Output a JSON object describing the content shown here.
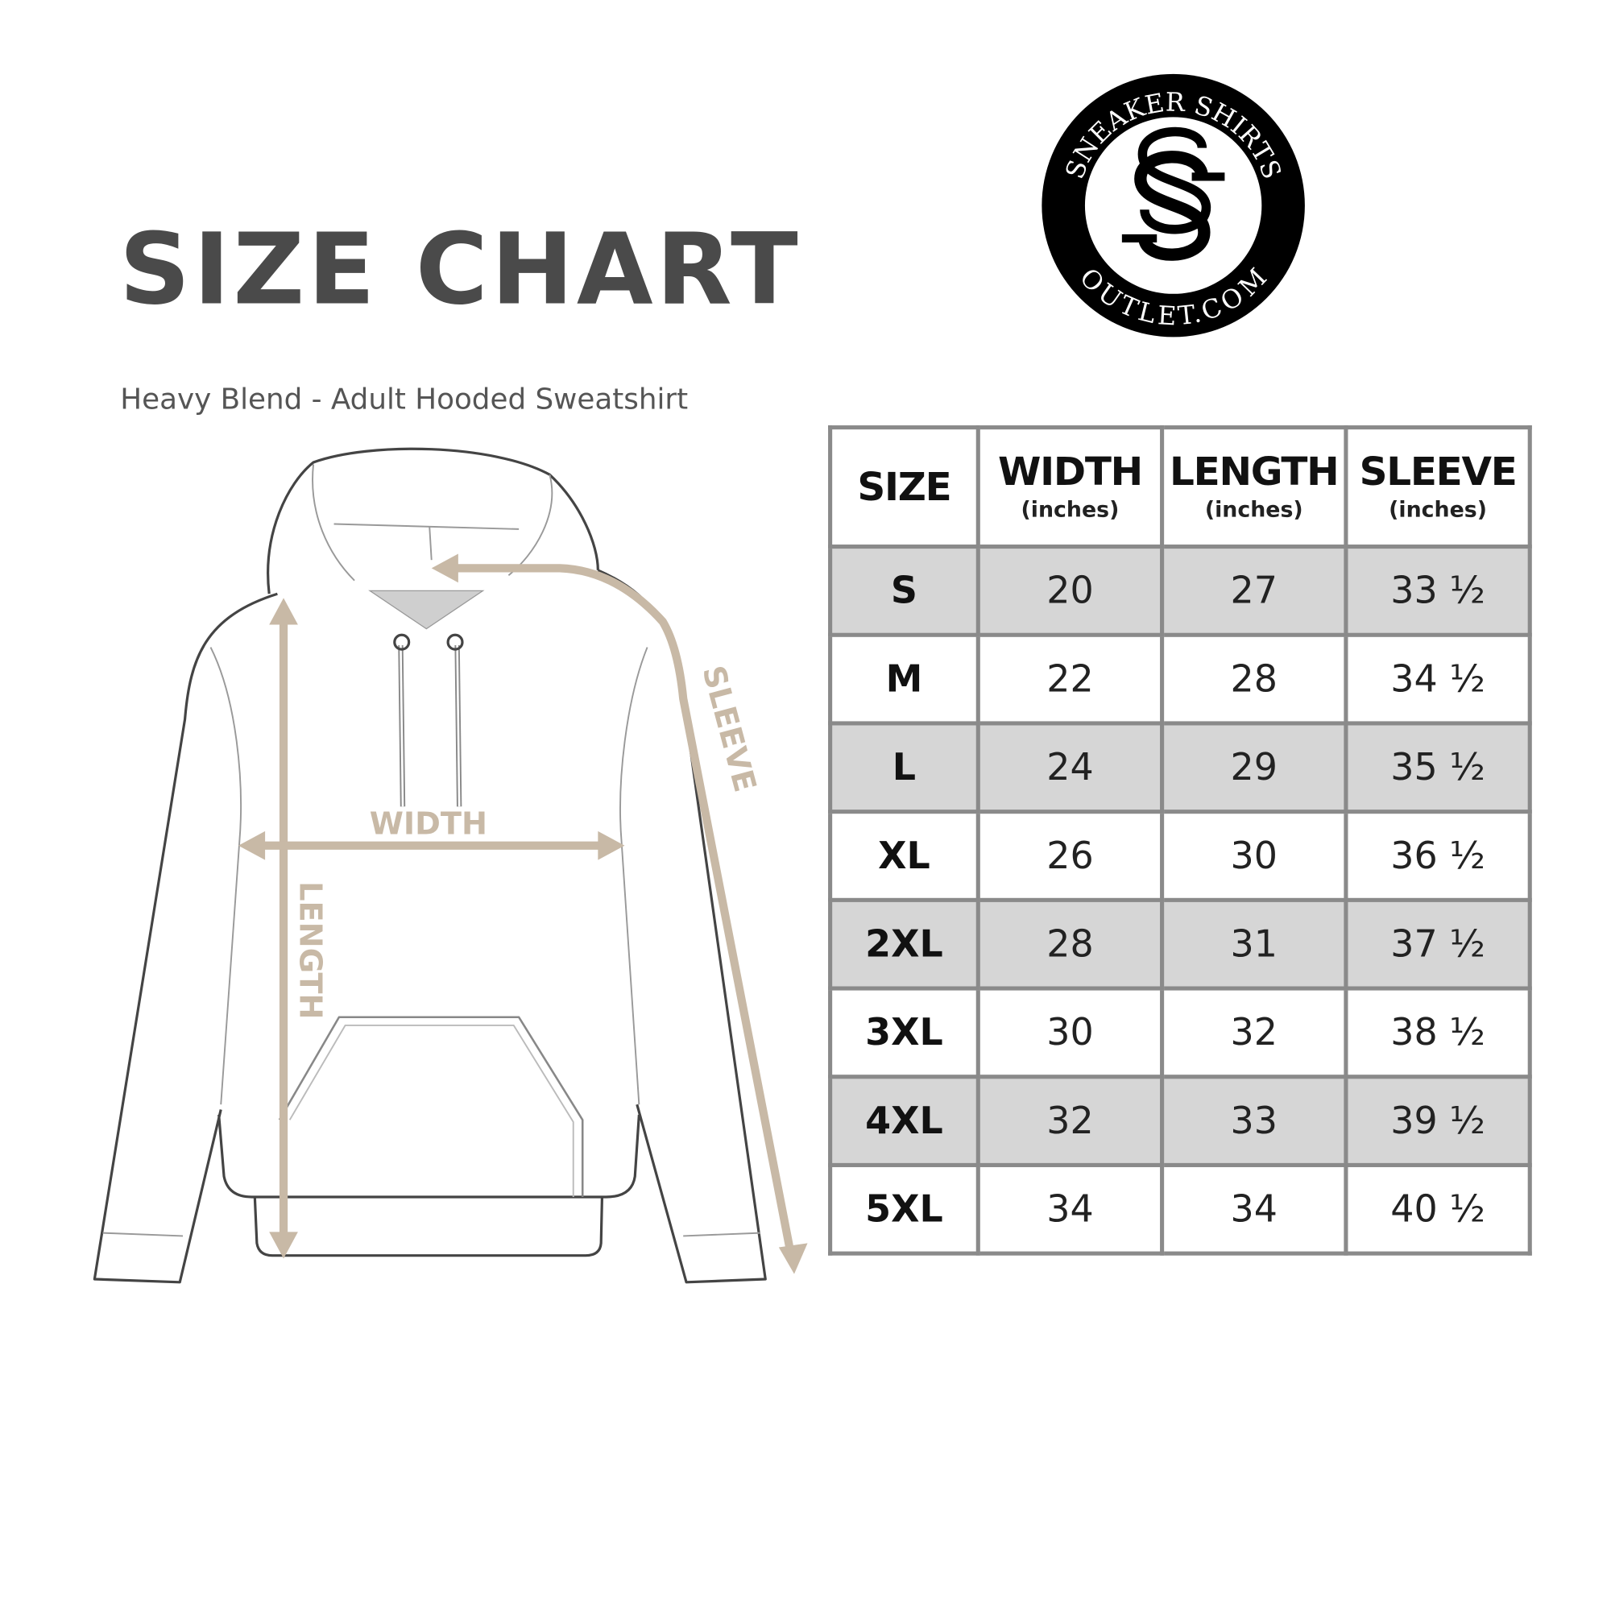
{
  "header": {
    "title": "SIZE CHART",
    "subtitle": "Heavy Blend - Adult Hooded Sweatshirt"
  },
  "logo": {
    "top_text": "SNEAKER SHIRTS",
    "bottom_text": "OUTLET.COM",
    "monogram": "SS"
  },
  "diagram": {
    "width_label": "WIDTH",
    "length_label": "LENGTH",
    "sleeve_label": "SLEEVE",
    "arrow_color": "#c8b9a6"
  },
  "table": {
    "columns": [
      {
        "label": "SIZE",
        "unit": ""
      },
      {
        "label": "WIDTH",
        "unit": "(inches)"
      },
      {
        "label": "LENGTH",
        "unit": "(inches)"
      },
      {
        "label": "SLEEVE",
        "unit": "(inches)"
      }
    ],
    "rows": [
      [
        "S",
        "20",
        "27",
        "33 ½"
      ],
      [
        "M",
        "22",
        "28",
        "34 ½"
      ],
      [
        "L",
        "24",
        "29",
        "35 ½"
      ],
      [
        "XL",
        "26",
        "30",
        "36 ½"
      ],
      [
        "2XL",
        "28",
        "31",
        "37 ½"
      ],
      [
        "3XL",
        "30",
        "32",
        "38 ½"
      ],
      [
        "4XL",
        "32",
        "33",
        "39 ½"
      ],
      [
        "5XL",
        "34",
        "34",
        "40 ½"
      ]
    ]
  }
}
